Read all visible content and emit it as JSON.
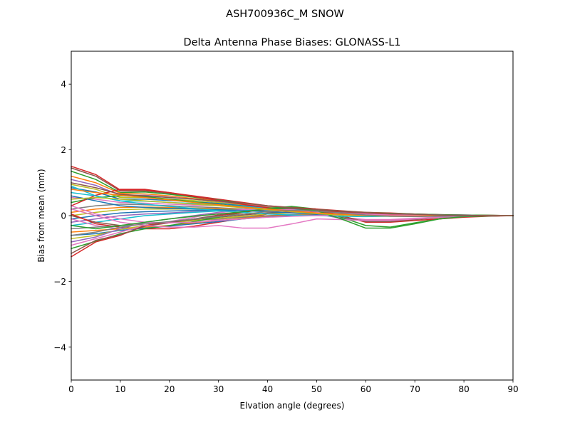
{
  "figure": {
    "suptitle": "ASH700936C_M    SNOW"
  },
  "chart_data": {
    "type": "line",
    "title": "Delta Antenna Phase Biases: GLONASS-L1",
    "xlabel": "Elvation angle (degrees)",
    "ylabel": "Bias from mean (mm)",
    "xlim": [
      0,
      90
    ],
    "ylim": [
      -5,
      5
    ],
    "xticks": [
      0,
      10,
      20,
      30,
      40,
      50,
      60,
      70,
      80,
      90
    ],
    "yticks": [
      -4,
      -2,
      0,
      2,
      4
    ],
    "ytick_labels": [
      "−4",
      "−2",
      "0",
      "2",
      "4"
    ],
    "grid": false,
    "legend": "none",
    "x": [
      0,
      5,
      10,
      15,
      20,
      25,
      30,
      35,
      40,
      45,
      50,
      55,
      60,
      65,
      70,
      75,
      80,
      85,
      90
    ],
    "series": [
      {
        "color": "#d62728",
        "values": [
          1.5,
          1.25,
          0.78,
          0.78,
          0.7,
          0.6,
          0.5,
          0.4,
          0.3,
          0.25,
          0.2,
          0.15,
          0.1,
          0.08,
          0.05,
          0.03,
          0.02,
          0.01,
          0.0
        ]
      },
      {
        "color": "#8c564b",
        "values": [
          1.45,
          1.2,
          0.75,
          0.75,
          0.68,
          0.58,
          0.48,
          0.38,
          0.28,
          0.24,
          0.19,
          0.14,
          0.1,
          0.07,
          0.05,
          0.03,
          0.02,
          0.01,
          0.0
        ]
      },
      {
        "color": "#2ca02c",
        "values": [
          1.35,
          1.1,
          0.7,
          0.72,
          0.65,
          0.56,
          0.47,
          0.37,
          0.28,
          0.23,
          0.18,
          0.13,
          0.09,
          0.07,
          0.05,
          0.03,
          0.02,
          0.01,
          0.0
        ]
      },
      {
        "color": "#ff7f0e",
        "values": [
          1.2,
          1.0,
          0.68,
          0.66,
          0.6,
          0.52,
          0.45,
          0.36,
          0.27,
          0.22,
          0.17,
          0.13,
          0.09,
          0.06,
          0.04,
          0.02,
          0.01,
          0.0,
          0.0
        ]
      },
      {
        "color": "#9467bd",
        "values": [
          1.1,
          0.92,
          0.62,
          0.62,
          0.56,
          0.5,
          0.43,
          0.34,
          0.26,
          0.21,
          0.16,
          0.12,
          0.08,
          0.06,
          0.04,
          0.02,
          0.01,
          0.0,
          0.0
        ]
      },
      {
        "color": "#bcbd22",
        "values": [
          0.95,
          0.8,
          0.55,
          0.55,
          0.5,
          0.46,
          0.4,
          0.32,
          0.25,
          0.2,
          0.15,
          0.11,
          0.08,
          0.05,
          0.03,
          0.02,
          0.01,
          0.0,
          0.0
        ]
      },
      {
        "color": "#1f77b4",
        "values": [
          0.85,
          0.72,
          0.5,
          0.5,
          0.46,
          0.42,
          0.37,
          0.3,
          0.24,
          0.19,
          0.14,
          0.1,
          0.07,
          0.05,
          0.03,
          0.02,
          0.01,
          0.0,
          0.0
        ]
      },
      {
        "color": "#17becf",
        "values": [
          0.7,
          0.6,
          0.45,
          0.44,
          0.4,
          0.37,
          0.33,
          0.28,
          0.22,
          0.18,
          0.13,
          0.09,
          0.06,
          0.04,
          0.03,
          0.02,
          0.01,
          0.0,
          0.0
        ]
      },
      {
        "color": "#e377c2",
        "values": [
          0.55,
          0.5,
          0.4,
          0.38,
          0.35,
          0.32,
          0.3,
          0.25,
          0.2,
          0.16,
          0.12,
          0.08,
          0.05,
          0.04,
          0.02,
          0.01,
          0.0,
          0.0,
          0.0
        ]
      },
      {
        "color": "#2ca02c",
        "values": [
          0.4,
          0.55,
          0.6,
          0.58,
          0.5,
          0.42,
          0.34,
          0.26,
          0.2,
          0.15,
          0.1,
          0.06,
          0.04,
          0.03,
          0.02,
          0.01,
          0.0,
          0.0,
          0.0
        ]
      },
      {
        "color": "#d62728",
        "values": [
          0.3,
          0.62,
          0.8,
          0.8,
          0.7,
          0.58,
          0.46,
          0.34,
          0.24,
          0.16,
          0.1,
          0.06,
          0.04,
          0.03,
          0.02,
          0.01,
          0.0,
          0.0,
          0.0
        ]
      },
      {
        "color": "#7f7f7f",
        "values": [
          0.2,
          0.3,
          0.35,
          0.33,
          0.3,
          0.27,
          0.24,
          0.2,
          0.17,
          0.14,
          0.1,
          0.07,
          0.05,
          0.03,
          0.02,
          0.01,
          0.0,
          0.0,
          0.0
        ]
      },
      {
        "color": "#ff7f0e",
        "values": [
          0.1,
          0.2,
          0.25,
          0.26,
          0.25,
          0.23,
          0.21,
          0.18,
          0.15,
          0.12,
          0.09,
          0.06,
          0.04,
          0.03,
          0.02,
          0.01,
          0.0,
          0.0,
          0.0
        ]
      },
      {
        "color": "#bcbd22",
        "values": [
          0.0,
          0.1,
          0.18,
          0.2,
          0.2,
          0.2,
          0.19,
          0.17,
          0.15,
          0.13,
          0.1,
          0.07,
          0.05,
          0.03,
          0.02,
          0.01,
          0.0,
          0.0,
          0.0
        ]
      },
      {
        "color": "#1f77b4",
        "values": [
          -0.1,
          0.0,
          0.08,
          0.12,
          0.14,
          0.16,
          0.17,
          0.17,
          0.16,
          0.14,
          0.11,
          0.08,
          0.05,
          0.03,
          0.02,
          0.01,
          0.0,
          0.0,
          0.0
        ]
      },
      {
        "color": "#9467bd",
        "values": [
          -0.2,
          -0.1,
          0.0,
          0.05,
          0.08,
          0.12,
          0.15,
          0.17,
          0.17,
          0.15,
          0.12,
          0.08,
          0.05,
          0.03,
          0.02,
          0.01,
          0.0,
          0.0,
          0.0
        ]
      },
      {
        "color": "#17becf",
        "values": [
          -0.3,
          -0.2,
          -0.1,
          0.0,
          0.05,
          0.1,
          0.14,
          0.17,
          0.18,
          0.16,
          0.12,
          0.08,
          0.05,
          0.03,
          0.02,
          0.01,
          0.0,
          0.0,
          0.0
        ]
      },
      {
        "color": "#8c564b",
        "values": [
          0.0,
          -0.2,
          -0.3,
          -0.25,
          -0.2,
          -0.12,
          -0.05,
          0.02,
          0.08,
          0.1,
          0.08,
          0.06,
          0.04,
          0.03,
          0.02,
          0.01,
          0.0,
          0.0,
          0.0
        ]
      },
      {
        "color": "#e377c2",
        "values": [
          -0.1,
          -0.3,
          -0.4,
          -0.38,
          -0.32,
          -0.22,
          -0.12,
          -0.03,
          0.05,
          0.1,
          0.1,
          0.08,
          0.05,
          0.03,
          0.02,
          0.01,
          0.0,
          0.0,
          0.0
        ]
      },
      {
        "color": "#d62728",
        "values": [
          0.05,
          -0.25,
          -0.35,
          -0.4,
          -0.4,
          -0.32,
          -0.2,
          -0.08,
          0.05,
          0.12,
          0.14,
          0.12,
          0.08,
          0.05,
          0.03,
          0.01,
          0.0,
          0.0,
          0.0
        ]
      },
      {
        "color": "#7f7f7f",
        "values": [
          -0.4,
          -0.35,
          -0.3,
          -0.25,
          -0.2,
          -0.15,
          -0.1,
          -0.05,
          0.0,
          0.03,
          0.04,
          0.03,
          0.02,
          0.01,
          0.01,
          0.0,
          0.0,
          0.0,
          0.0
        ]
      },
      {
        "color": "#ff7f0e",
        "values": [
          -0.5,
          -0.45,
          -0.4,
          -0.35,
          -0.3,
          -0.22,
          -0.15,
          -0.08,
          -0.02,
          0.02,
          0.03,
          0.03,
          0.02,
          0.01,
          0.0,
          0.0,
          0.0,
          0.0,
          0.0
        ]
      },
      {
        "color": "#1f77b4",
        "values": [
          -0.6,
          -0.55,
          -0.45,
          -0.38,
          -0.32,
          -0.25,
          -0.18,
          -0.1,
          -0.04,
          0.0,
          0.02,
          0.02,
          0.01,
          0.01,
          0.0,
          0.0,
          0.0,
          0.0,
          0.0
        ]
      },
      {
        "color": "#bcbd22",
        "values": [
          -0.7,
          -0.6,
          -0.42,
          -0.3,
          -0.22,
          -0.15,
          -0.08,
          -0.02,
          0.05,
          0.08,
          0.06,
          0.03,
          0.0,
          -0.02,
          -0.02,
          -0.01,
          0.0,
          0.0,
          0.0
        ]
      },
      {
        "color": "#9467bd",
        "values": [
          -0.8,
          -0.65,
          -0.4,
          -0.2,
          -0.1,
          0.0,
          0.1,
          0.2,
          0.2,
          0.15,
          0.05,
          -0.08,
          -0.15,
          -0.15,
          -0.1,
          -0.05,
          -0.02,
          -0.01,
          0.0
        ]
      },
      {
        "color": "#e377c2",
        "values": [
          -0.9,
          -0.7,
          -0.5,
          -0.3,
          -0.18,
          -0.05,
          0.08,
          0.18,
          0.22,
          0.18,
          0.08,
          -0.05,
          -0.12,
          -0.12,
          -0.08,
          -0.04,
          -0.02,
          -0.01,
          0.0
        ]
      },
      {
        "color": "#2ca02c",
        "values": [
          -1.0,
          -0.78,
          -0.55,
          -0.4,
          -0.3,
          -0.18,
          -0.05,
          0.1,
          0.22,
          0.28,
          0.2,
          -0.05,
          -0.3,
          -0.35,
          -0.22,
          -0.1,
          -0.03,
          -0.01,
          0.0
        ]
      },
      {
        "color": "#d62728",
        "values": [
          -1.25,
          -0.8,
          -0.6,
          -0.3,
          -0.2,
          -0.1,
          0.0,
          0.1,
          0.2,
          0.25,
          0.2,
          0.0,
          -0.2,
          -0.2,
          -0.15,
          -0.1,
          -0.05,
          -0.02,
          0.0
        ]
      },
      {
        "color": "#8c564b",
        "values": [
          -1.15,
          -0.75,
          -0.58,
          -0.32,
          -0.22,
          -0.1,
          0.02,
          0.12,
          0.2,
          0.22,
          0.15,
          -0.02,
          -0.18,
          -0.18,
          -0.12,
          -0.06,
          -0.02,
          -0.01,
          0.0
        ]
      },
      {
        "color": "#1f77b4",
        "values": [
          0.6,
          0.45,
          0.3,
          0.25,
          0.22,
          0.2,
          0.18,
          0.15,
          0.12,
          0.08,
          0.05,
          0.02,
          0.0,
          -0.01,
          -0.01,
          0.0,
          0.0,
          0.0,
          0.0
        ]
      },
      {
        "color": "#17becf",
        "values": [
          0.9,
          0.6,
          0.45,
          0.35,
          0.28,
          0.22,
          0.15,
          0.1,
          0.05,
          0.02,
          0.0,
          -0.02,
          -0.03,
          -0.02,
          -0.01,
          0.0,
          0.0,
          0.0,
          0.0
        ]
      },
      {
        "color": "#e377c2",
        "values": [
          0.3,
          0.05,
          -0.1,
          -0.2,
          -0.22,
          -0.2,
          -0.15,
          -0.1,
          -0.05,
          -0.02,
          0.0,
          0.02,
          0.03,
          0.02,
          0.01,
          0.0,
          0.0,
          0.0,
          0.0
        ]
      },
      {
        "color": "#e377c2",
        "values": [
          0.2,
          0.0,
          -0.2,
          -0.3,
          -0.35,
          -0.35,
          -0.3,
          -0.38,
          -0.38,
          -0.25,
          -0.1,
          -0.12,
          -0.15,
          -0.15,
          -0.1,
          -0.05,
          -0.02,
          -0.01,
          0.0
        ]
      },
      {
        "color": "#2ca02c",
        "values": [
          -0.3,
          -0.4,
          -0.3,
          -0.2,
          -0.1,
          -0.02,
          0.05,
          0.12,
          0.2,
          0.25,
          0.15,
          -0.1,
          -0.38,
          -0.38,
          -0.25,
          -0.1,
          -0.03,
          -0.01,
          0.0
        ]
      },
      {
        "color": "#bcbd22",
        "values": [
          0.5,
          0.55,
          0.5,
          0.45,
          0.4,
          0.35,
          0.3,
          0.24,
          0.18,
          0.12,
          0.06,
          0.02,
          0.0,
          -0.02,
          -0.02,
          -0.01,
          0.0,
          0.0,
          0.0
        ]
      },
      {
        "color": "#ff7f0e",
        "values": [
          0.8,
          0.7,
          0.62,
          0.55,
          0.48,
          0.4,
          0.33,
          0.26,
          0.2,
          0.14,
          0.08,
          0.04,
          0.01,
          -0.01,
          -0.01,
          0.0,
          0.0,
          0.0,
          0.0
        ]
      },
      {
        "color": "#7f7f7f",
        "values": [
          -0.6,
          -0.5,
          -0.35,
          -0.25,
          -0.18,
          -0.1,
          -0.03,
          0.05,
          0.12,
          0.16,
          0.14,
          0.08,
          0.02,
          -0.02,
          -0.03,
          -0.02,
          -0.01,
          0.0,
          0.0
        ]
      },
      {
        "color": "#8c564b",
        "values": [
          1.0,
          0.85,
          0.65,
          0.6,
          0.55,
          0.5,
          0.44,
          0.38,
          0.3,
          0.24,
          0.18,
          0.13,
          0.09,
          0.06,
          0.04,
          0.02,
          0.01,
          0.0,
          0.0
        ]
      }
    ]
  }
}
